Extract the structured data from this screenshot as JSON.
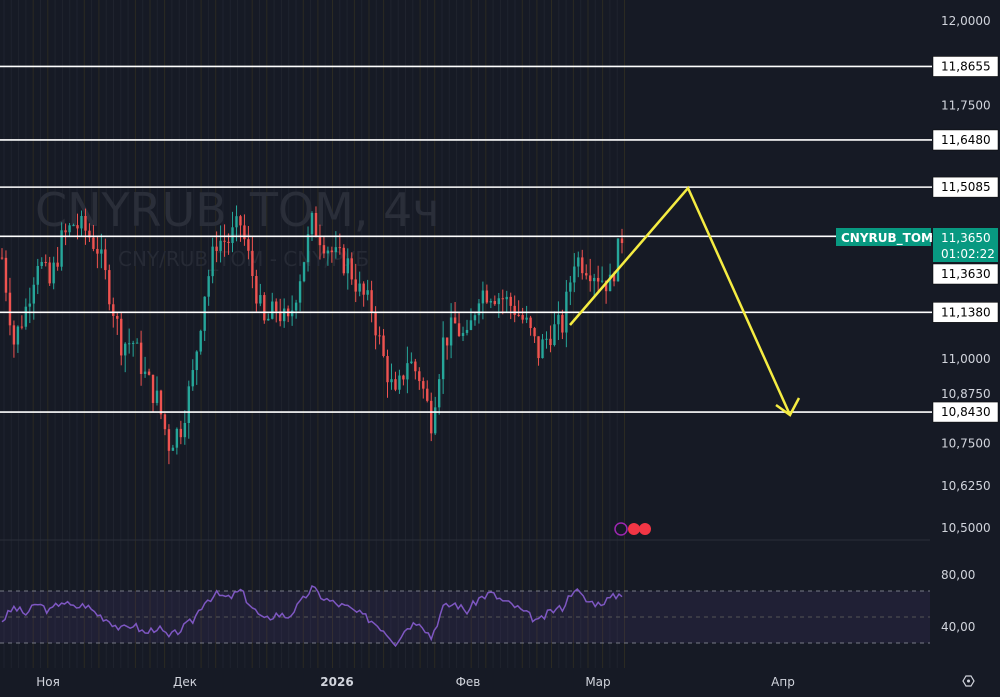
{
  "chart_data": {
    "type": "candlestick",
    "symbol_watermark": "CNYRUB_TOM, 4ч",
    "description_watermark": "CNY/RUB_TOM - CNY/РУБ",
    "price_axis": {
      "ticks": [
        "12,0000",
        "11,7500",
        "11,0000",
        "10,8750",
        "10,7500",
        "10,6250",
        "10,5000"
      ],
      "range": [
        10.5,
        12.0
      ]
    },
    "time_axis": {
      "ticks": [
        "Ноя",
        "Дек",
        "2026",
        "Фев",
        "Мар",
        "Апр"
      ]
    },
    "approx_closes": [
      11.3,
      11.05,
      11.15,
      11.3,
      11.22,
      11.35,
      11.4,
      11.38,
      11.33,
      11.2,
      11.05,
      11.05,
      10.95,
      10.88,
      10.75,
      10.8,
      10.95,
      11.2,
      11.35,
      11.35,
      11.4,
      11.25,
      11.1,
      11.15,
      11.1,
      11.25,
      11.4,
      11.35,
      11.3,
      11.28,
      11.2,
      11.15,
      11.0,
      10.88,
      11.0,
      10.95,
      10.82,
      11.05,
      11.1,
      11.05,
      11.2,
      11.2,
      11.18,
      11.15,
      11.1,
      11.02,
      11.08,
      11.1,
      11.3,
      11.28,
      11.25,
      11.22,
      11.365
    ],
    "horizontal_levels": [
      "11,8655",
      "11,6480",
      "11,5085",
      "11,3630",
      "11,1380",
      "10,8430"
    ],
    "level_values": [
      11.8655,
      11.648,
      11.5085,
      11.363,
      11.138,
      10.843
    ],
    "current_price": {
      "symbol": "CNYRUB_TOM",
      "price": "11,3650",
      "countdown": "01:02:22",
      "value": 11.365
    },
    "projection_arrow": {
      "color": "#f5ec42",
      "points_price": [
        11.1,
        11.5085,
        10.843
      ]
    },
    "rsi": {
      "axis_ticks": [
        "80,00",
        "40,00"
      ],
      "upper_band": 70,
      "lower_band": 30,
      "middle": 50,
      "approx_values": [
        45,
        55,
        50,
        58,
        52,
        60,
        55,
        57,
        50,
        45,
        38,
        42,
        35,
        40,
        32,
        38,
        45,
        60,
        65,
        62,
        68,
        55,
        45,
        50,
        48,
        58,
        70,
        62,
        58,
        55,
        50,
        45,
        38,
        28,
        40,
        45,
        32,
        55,
        58,
        52,
        62,
        66,
        60,
        56,
        50,
        44,
        52,
        55,
        70,
        60,
        58,
        62,
        66
      ]
    },
    "colors": {
      "up": "#26a69a",
      "down": "#ef5350",
      "rsi": "#7e57c2",
      "levels": "#ffffff",
      "price_label": "#089981"
    },
    "grid": false
  }
}
